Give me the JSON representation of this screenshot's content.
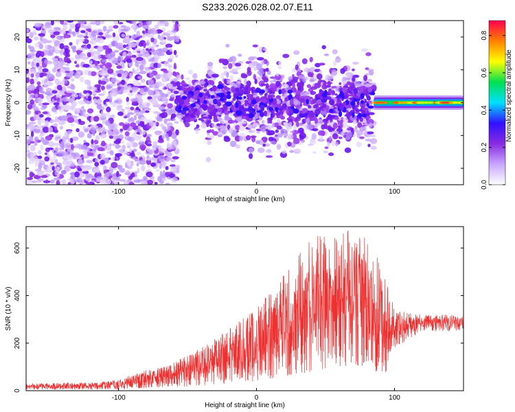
{
  "title": "S233.2026.028.02.07.E11",
  "chart_data": [
    {
      "type": "heatmap",
      "xlabel": "Height of straight line (km)",
      "ylabel": "Frequency (Hz)",
      "xlim": [
        -167,
        150
      ],
      "ylim": [
        -25,
        25
      ],
      "x_ticks": [
        -100,
        0,
        100
      ],
      "y_ticks": [
        -20,
        -10,
        0,
        10,
        20
      ],
      "colorbar": {
        "label": "Normalized spectral amplitude",
        "range": [
          0.0,
          0.88
        ],
        "ticks": [
          0.0,
          0.2,
          0.4,
          0.6,
          0.8
        ],
        "tick_labels": [
          "0.0",
          "0.2",
          "0.4",
          "0.6",
          "0.8"
        ],
        "colors": [
          "#ffffff",
          "#c8a6ff",
          "#8a2be2",
          "#3010ff",
          "#00e0ff",
          "#00e050",
          "#ffff00",
          "#ff8000",
          "#ff0050"
        ]
      },
      "features": [
        {
          "region": "scattered noise",
          "x_range": [
            -167,
            -57
          ],
          "freq_range": [
            -25,
            25
          ],
          "amplitude": 0.1
        },
        {
          "region": "strong band",
          "x_range": [
            -57,
            85
          ],
          "freq_range": [
            -15,
            20
          ],
          "amplitude": 0.2
        },
        {
          "region": "narrow signal line",
          "x_range": [
            85,
            150
          ],
          "freq_range": [
            -1,
            1
          ],
          "amplitude": 0.85
        }
      ]
    },
    {
      "type": "line",
      "xlabel": "Height of straight line (km)",
      "ylabel": "SNR (10 * v/v)",
      "xlim": [
        -167,
        150
      ],
      "ylim": [
        0,
        690
      ],
      "x_ticks": [
        -100,
        0,
        100
      ],
      "y_ticks": [
        0,
        200,
        400,
        600
      ],
      "series": [
        {
          "name": "SNR",
          "color": "#ee3030",
          "envelope": [
            {
              "x": -167,
              "low": 5,
              "high": 30
            },
            {
              "x": -120,
              "low": 5,
              "high": 35
            },
            {
              "x": -100,
              "low": 5,
              "high": 45
            },
            {
              "x": -85,
              "low": 10,
              "high": 80
            },
            {
              "x": -60,
              "low": 15,
              "high": 120
            },
            {
              "x": -40,
              "low": 20,
              "high": 180
            },
            {
              "x": -20,
              "low": 30,
              "high": 260
            },
            {
              "x": 0,
              "low": 40,
              "high": 350
            },
            {
              "x": 20,
              "low": 60,
              "high": 500
            },
            {
              "x": 40,
              "low": 80,
              "high": 640
            },
            {
              "x": 60,
              "low": 100,
              "high": 690
            },
            {
              "x": 80,
              "low": 100,
              "high": 640
            },
            {
              "x": 93,
              "low": 60,
              "high": 500
            },
            {
              "x": 100,
              "low": 180,
              "high": 340
            },
            {
              "x": 120,
              "low": 250,
              "high": 320
            },
            {
              "x": 150,
              "low": 250,
              "high": 320
            }
          ]
        }
      ]
    }
  ]
}
